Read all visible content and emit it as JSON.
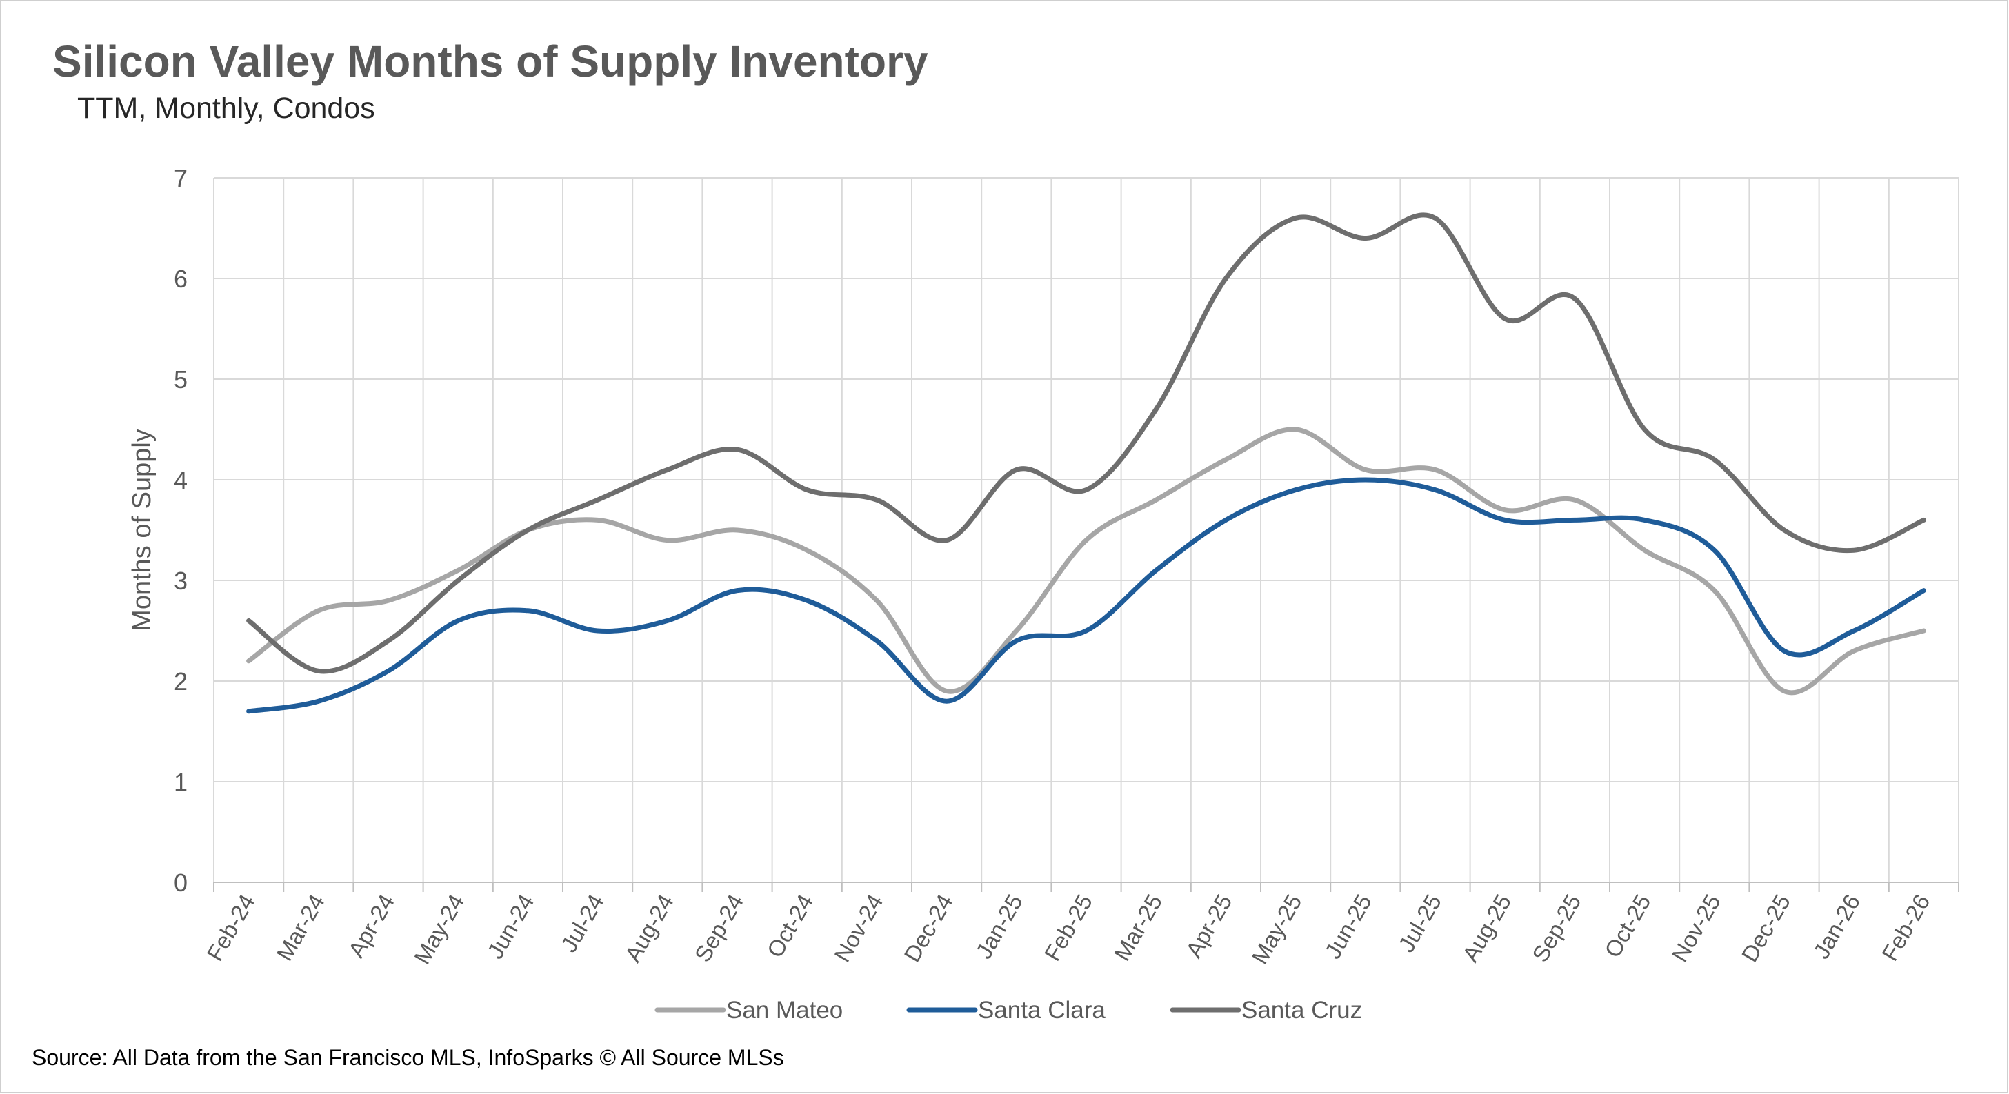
{
  "chart_data": {
    "type": "line",
    "title": "Silicon Valley Months of Supply Inventory",
    "subtitle": "TTM, Monthly, Condos",
    "xlabel": "",
    "ylabel": "Months of Supply",
    "ylim": [
      0,
      7
    ],
    "yticks": [
      "0",
      "1",
      "2",
      "3",
      "4",
      "5",
      "6",
      "7"
    ],
    "grid": true,
    "legend_position": "bottom",
    "categories": [
      "Feb-24",
      "Mar-24",
      "Apr-24",
      "May-24",
      "Jun-24",
      "Jul-24",
      "Aug-24",
      "Sep-24",
      "Oct-24",
      "Nov-24",
      "Dec-24",
      "Jan-25",
      "Feb-25",
      "Mar-25",
      "Apr-25",
      "May-25",
      "Jun-25",
      "Jul-25",
      "Aug-25",
      "Sep-25",
      "Oct-25",
      "Nov-25",
      "Dec-25",
      "Jan-26",
      "Feb-26"
    ],
    "series": [
      {
        "name": "San Mateo",
        "color": "#a6a6a6",
        "values": [
          2.2,
          2.7,
          2.8,
          3.1,
          3.5,
          3.6,
          3.4,
          3.5,
          3.3,
          2.8,
          1.9,
          2.5,
          3.4,
          3.8,
          4.2,
          4.5,
          4.1,
          4.1,
          3.7,
          3.8,
          3.3,
          2.9,
          1.9,
          2.3,
          2.5
        ]
      },
      {
        "name": "Santa Clara",
        "color": "#1f5c99",
        "values": [
          1.7,
          1.8,
          2.1,
          2.6,
          2.7,
          2.5,
          2.6,
          2.9,
          2.8,
          2.4,
          1.8,
          2.4,
          2.5,
          3.1,
          3.6,
          3.9,
          4.0,
          3.9,
          3.6,
          3.6,
          3.6,
          3.3,
          2.3,
          2.5,
          2.9
        ]
      },
      {
        "name": "Santa Cruz",
        "color": "#6e6e6e",
        "values": [
          2.6,
          2.1,
          2.4,
          3.0,
          3.5,
          3.8,
          4.1,
          4.3,
          3.9,
          3.8,
          3.4,
          4.1,
          3.9,
          4.7,
          6.0,
          6.6,
          6.4,
          6.6,
          5.6,
          5.8,
          4.5,
          4.2,
          3.5,
          3.3,
          3.6
        ]
      }
    ]
  },
  "source": "Source: All Data from the San Francisco MLS, InfoSparks © All Source MLSs"
}
